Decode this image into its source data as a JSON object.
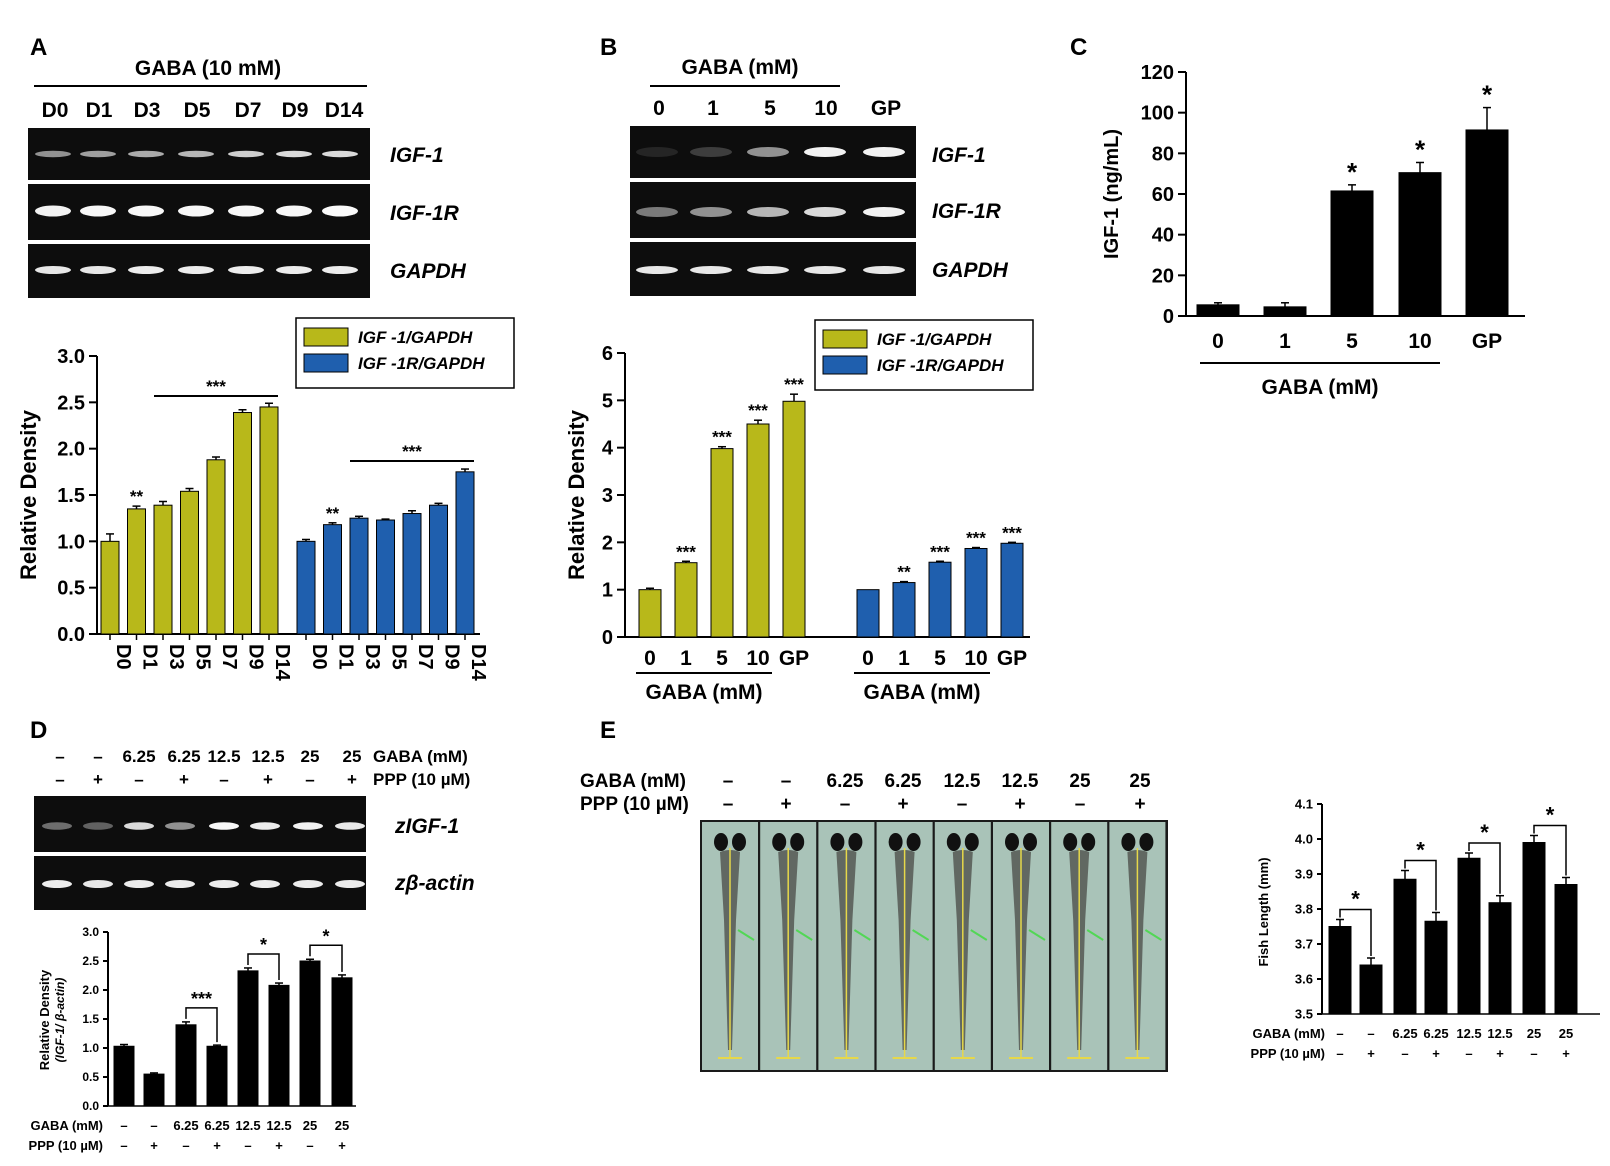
{
  "colors": {
    "yellow": "#b8b81a",
    "blue": "#1f5fae",
    "black": "#000000"
  },
  "panel_letters": {
    "a": "A",
    "b": "B",
    "c": "C",
    "d": "D",
    "e": "E"
  },
  "gels": {
    "a": {
      "treatment": "GABA (10 mM)",
      "lanes": [
        "D0",
        "D1",
        "D3",
        "D5",
        "D7",
        "D9",
        "D14"
      ],
      "rows": [
        "IGF-1",
        "IGF-1R",
        "GAPDH"
      ]
    },
    "b": {
      "treatment": "GABA (mM)",
      "lanes": [
        "0",
        "1",
        "5",
        "10",
        "GP"
      ],
      "rows": [
        "IGF-1",
        "IGF-1R",
        "GAPDH"
      ]
    },
    "d": {
      "lanes_gaba": [
        "–",
        "–",
        "6.25",
        "6.25",
        "12.5",
        "12.5",
        "25",
        "25"
      ],
      "lanes_ppp": [
        "–",
        "+",
        "–",
        "+",
        "–",
        "+",
        "–",
        "+"
      ],
      "label_gaba": "GABA (mM)",
      "label_ppp": "PPP (10 µM)",
      "rows": [
        "zIGF-1",
        "zβ-actin"
      ]
    },
    "e": {
      "lanes_gaba": [
        "–",
        "–",
        "6.25",
        "6.25",
        "12.5",
        "12.5",
        "25",
        "25"
      ],
      "lanes_ppp": [
        "–",
        "+",
        "–",
        "+",
        "–",
        "+",
        "–",
        "+"
      ],
      "label_gaba": "GABA (mM)",
      "label_ppp": "PPP (10 µM)"
    }
  },
  "chart_data": [
    {
      "id": "A",
      "type": "bar",
      "ylabel": "Relative Density",
      "ylim": [
        0,
        3.0
      ],
      "yticks": [
        "0.0",
        "0.5",
        "1.0",
        "1.5",
        "2.0",
        "2.5",
        "3.0"
      ],
      "categories": [
        "D0",
        "D1",
        "D3",
        "D5",
        "D7",
        "D9",
        "D14"
      ],
      "legend": [
        "IGF -1/GAPDH",
        "IGF -1R/GAPDH"
      ],
      "series": [
        {
          "name": "IGF -1/GAPDH",
          "values": [
            1.0,
            1.35,
            1.39,
            1.54,
            1.88,
            2.39,
            2.45
          ],
          "errors": [
            0.08,
            0.03,
            0.04,
            0.03,
            0.03,
            0.03,
            0.04
          ],
          "sig": [
            "",
            "**",
            "",
            "",
            "",
            "",
            ""
          ],
          "bracket": "***"
        },
        {
          "name": "IGF -1R/GAPDH",
          "values": [
            1.0,
            1.18,
            1.25,
            1.23,
            1.3,
            1.39,
            1.75
          ],
          "errors": [
            0.02,
            0.02,
            0.02,
            0.01,
            0.03,
            0.02,
            0.03
          ],
          "sig": [
            "",
            "**",
            "",
            "",
            "",
            "",
            ""
          ],
          "bracket": "***"
        }
      ]
    },
    {
      "id": "B",
      "type": "bar",
      "ylabel": "Relative Density",
      "ylim": [
        0,
        6
      ],
      "yticks": [
        "0",
        "1",
        "2",
        "3",
        "4",
        "5",
        "6"
      ],
      "categories": [
        "0",
        "1",
        "5",
        "10",
        "GP"
      ],
      "group_label": "GABA (mM)",
      "legend": [
        "IGF -1/GAPDH",
        "IGF -1R/GAPDH"
      ],
      "series": [
        {
          "name": "IGF -1/GAPDH",
          "values": [
            1.0,
            1.57,
            3.98,
            4.5,
            4.98
          ],
          "errors": [
            0.03,
            0.03,
            0.04,
            0.08,
            0.15
          ],
          "sig": [
            "",
            "***",
            "***",
            "***",
            "***"
          ]
        },
        {
          "name": "IGF -1R/GAPDH",
          "values": [
            1.0,
            1.15,
            1.58,
            1.87,
            1.98
          ],
          "errors": [
            0.0,
            0.02,
            0.02,
            0.02,
            0.02
          ],
          "sig": [
            "",
            "**",
            "***",
            "***",
            "***"
          ]
        }
      ]
    },
    {
      "id": "C",
      "type": "bar",
      "ylabel": "IGF-1 (ng/mL)",
      "xlabel": "GABA (mM)",
      "ylim": [
        0,
        120
      ],
      "yticks": [
        "0",
        "20",
        "40",
        "60",
        "80",
        "100",
        "120"
      ],
      "categories": [
        "0",
        "1",
        "5",
        "10",
        "GP"
      ],
      "values": [
        5.5,
        4.5,
        61.5,
        70.5,
        91.5
      ],
      "errors": [
        1.0,
        2.0,
        3.0,
        5.0,
        11.0
      ],
      "sig": [
        "",
        "",
        "*",
        "*",
        "*"
      ]
    },
    {
      "id": "D",
      "type": "bar",
      "ylabel": "Relative Density",
      "ylabel2": "(IGF-1/ β-actin)",
      "ylim": [
        0,
        3.0
      ],
      "yticks": [
        "0.0",
        "0.5",
        "1.0",
        "1.5",
        "2.0",
        "2.5",
        "3.0"
      ],
      "gaba": [
        "–",
        "–",
        "6.25",
        "6.25",
        "12.5",
        "12.5",
        "25",
        "25"
      ],
      "ppp": [
        "–",
        "+",
        "–",
        "+",
        "–",
        "+",
        "–",
        "+"
      ],
      "row_labels": [
        "GABA (mM)",
        "PPP (10 µM)"
      ],
      "values": [
        1.03,
        0.55,
        1.4,
        1.03,
        2.33,
        2.08,
        2.5,
        2.21
      ],
      "errors": [
        0.03,
        0.02,
        0.05,
        0.02,
        0.05,
        0.04,
        0.03,
        0.05
      ],
      "brackets": [
        "***",
        "*",
        "*"
      ]
    },
    {
      "id": "E",
      "type": "bar",
      "ylabel": "Fish Length (mm)",
      "ylim": [
        3.5,
        4.1
      ],
      "yticks": [
        "3.5",
        "3.6",
        "3.7",
        "3.8",
        "3.9",
        "4.0",
        "4.1"
      ],
      "gaba": [
        "–",
        "–",
        "6.25",
        "6.25",
        "12.5",
        "12.5",
        "25",
        "25"
      ],
      "ppp": [
        "–",
        "+",
        "–",
        "+",
        "–",
        "+",
        "–",
        "+"
      ],
      "row_labels": [
        "GABA (mM)",
        "PPP (10 µM)"
      ],
      "values": [
        3.75,
        3.64,
        3.885,
        3.765,
        3.945,
        3.818,
        3.99,
        3.87
      ],
      "errors": [
        0.02,
        0.02,
        0.025,
        0.025,
        0.015,
        0.02,
        0.02,
        0.02
      ],
      "brackets": [
        "*",
        "*",
        "*",
        "*"
      ]
    }
  ]
}
